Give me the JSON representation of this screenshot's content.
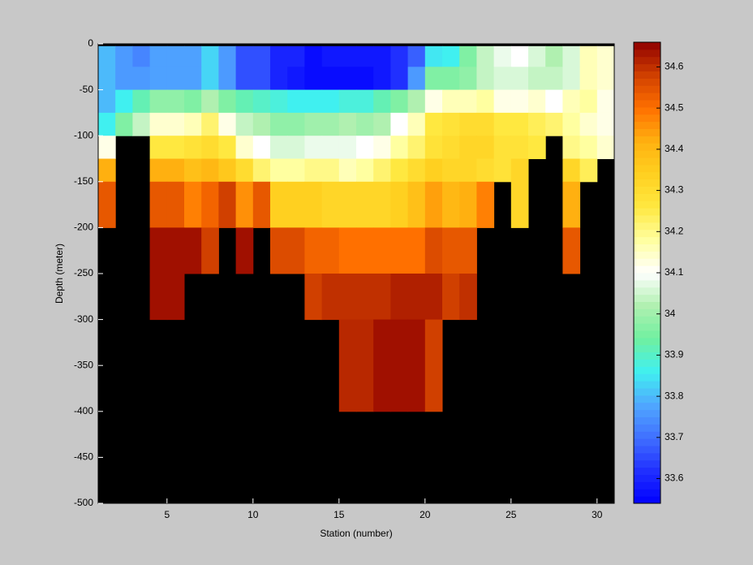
{
  "chart_data": {
    "type": "heatmap",
    "xlabel": "Station (number)",
    "ylabel": "Depth (meter)",
    "x": [
      1,
      2,
      3,
      4,
      5,
      6,
      7,
      8,
      9,
      10,
      11,
      12,
      13,
      14,
      15,
      16,
      17,
      18,
      19,
      20,
      21,
      22,
      23,
      24,
      25,
      26,
      27,
      28,
      29,
      30,
      31
    ],
    "y": [
      -2.5,
      -25,
      -50,
      -75,
      -100,
      -125,
      -150,
      -200,
      -250,
      -300,
      -400
    ],
    "values": [
      [
        33.8,
        33.76,
        33.73,
        33.77,
        33.77,
        33.77,
        33.83,
        33.76,
        33.66,
        33.66,
        33.6,
        33.6,
        33.56,
        33.58,
        33.58,
        33.58,
        33.58,
        33.62,
        33.68,
        33.85,
        33.86,
        33.96,
        34.04,
        34.08,
        34.1,
        34.06,
        34.02,
        34.06,
        34.16,
        34.14
      ],
      [
        33.8,
        33.76,
        33.76,
        33.77,
        33.77,
        33.77,
        33.83,
        33.76,
        33.66,
        33.66,
        33.6,
        33.58,
        33.56,
        33.56,
        33.56,
        33.56,
        33.58,
        33.62,
        33.76,
        33.96,
        33.96,
        33.98,
        34.04,
        34.06,
        34.06,
        34.04,
        34.04,
        34.06,
        34.16,
        34.14
      ],
      [
        33.8,
        33.86,
        33.92,
        33.98,
        33.98,
        33.96,
        34.02,
        33.96,
        33.92,
        33.9,
        33.88,
        33.86,
        33.86,
        33.86,
        33.88,
        33.88,
        33.92,
        33.96,
        34.02,
        34.12,
        34.16,
        34.16,
        34.18,
        34.12,
        34.12,
        34.14,
        34.1,
        34.16,
        34.18,
        34.12
      ],
      [
        33.86,
        33.96,
        34.04,
        34.14,
        34.14,
        34.16,
        34.22,
        34.12,
        34.04,
        34.02,
        33.98,
        33.98,
        34.0,
        34.0,
        34.02,
        34.0,
        34.02,
        34.1,
        34.16,
        34.26,
        34.28,
        34.3,
        34.3,
        34.26,
        34.26,
        34.24,
        34.22,
        34.18,
        34.14,
        34.12
      ],
      [
        34.12,
        null,
        null,
        34.26,
        34.26,
        34.28,
        34.3,
        34.26,
        34.14,
        34.1,
        34.06,
        34.06,
        34.08,
        34.08,
        34.08,
        34.1,
        34.12,
        34.18,
        34.22,
        34.28,
        34.3,
        34.32,
        34.32,
        34.28,
        34.28,
        34.26,
        null,
        34.2,
        34.18,
        34.14
      ],
      [
        34.42,
        null,
        null,
        34.42,
        34.42,
        34.38,
        34.4,
        34.36,
        34.3,
        34.22,
        34.18,
        34.18,
        34.2,
        34.2,
        34.16,
        34.18,
        34.22,
        34.26,
        34.3,
        34.34,
        34.32,
        34.32,
        34.3,
        34.28,
        34.32,
        null,
        null,
        34.32,
        34.24,
        null
      ],
      [
        34.54,
        null,
        null,
        34.54,
        34.54,
        34.48,
        34.52,
        34.58,
        34.46,
        34.54,
        34.34,
        34.34,
        34.34,
        34.32,
        34.32,
        34.32,
        34.32,
        34.34,
        34.38,
        34.44,
        34.4,
        34.42,
        34.48,
        null,
        34.32,
        null,
        null,
        34.42,
        null,
        null
      ],
      [
        null,
        null,
        null,
        34.64,
        34.64,
        34.64,
        34.58,
        null,
        34.64,
        null,
        34.56,
        34.56,
        34.52,
        34.52,
        34.5,
        34.5,
        34.5,
        34.5,
        34.5,
        34.56,
        34.54,
        34.54,
        null,
        null,
        null,
        null,
        null,
        34.54,
        null,
        null
      ],
      [
        null,
        null,
        null,
        34.64,
        34.64,
        null,
        null,
        null,
        null,
        null,
        null,
        null,
        34.58,
        34.6,
        34.6,
        34.6,
        34.6,
        34.62,
        34.62,
        34.62,
        34.58,
        34.6,
        null,
        null,
        null,
        null,
        null,
        null,
        null,
        null
      ],
      [
        null,
        null,
        null,
        null,
        null,
        null,
        null,
        null,
        null,
        null,
        null,
        null,
        null,
        null,
        34.61,
        34.61,
        34.64,
        34.64,
        34.64,
        34.58,
        null,
        null,
        null,
        null,
        null,
        null,
        null,
        null,
        null,
        null
      ]
    ],
    "xlim": [
      1,
      31
    ],
    "xticks": [
      5,
      10,
      15,
      20,
      25,
      30
    ],
    "ylim": [
      -500,
      0
    ],
    "yticks": [
      -500,
      -450,
      -400,
      -350,
      -300,
      -250,
      -200,
      -150,
      -100,
      -50,
      0
    ],
    "clim": [
      33.54,
      34.66
    ],
    "colorbar_ticks": [
      33.6,
      33.7,
      33.8,
      33.9,
      34,
      34.1,
      34.2,
      34.3,
      34.4,
      34.5,
      34.6
    ],
    "colormap": [
      "#0000ff",
      "#2030ff",
      "#4070ff",
      "#50a8ff",
      "#40f0f0",
      "#70f0a0",
      "#b0f0b0",
      "#ffffff",
      "#ffffa0",
      "#ffe840",
      "#ffd020",
      "#ffb010",
      "#ff7000",
      "#d04000",
      "#900000"
    ],
    "missing_color": "#000000"
  }
}
